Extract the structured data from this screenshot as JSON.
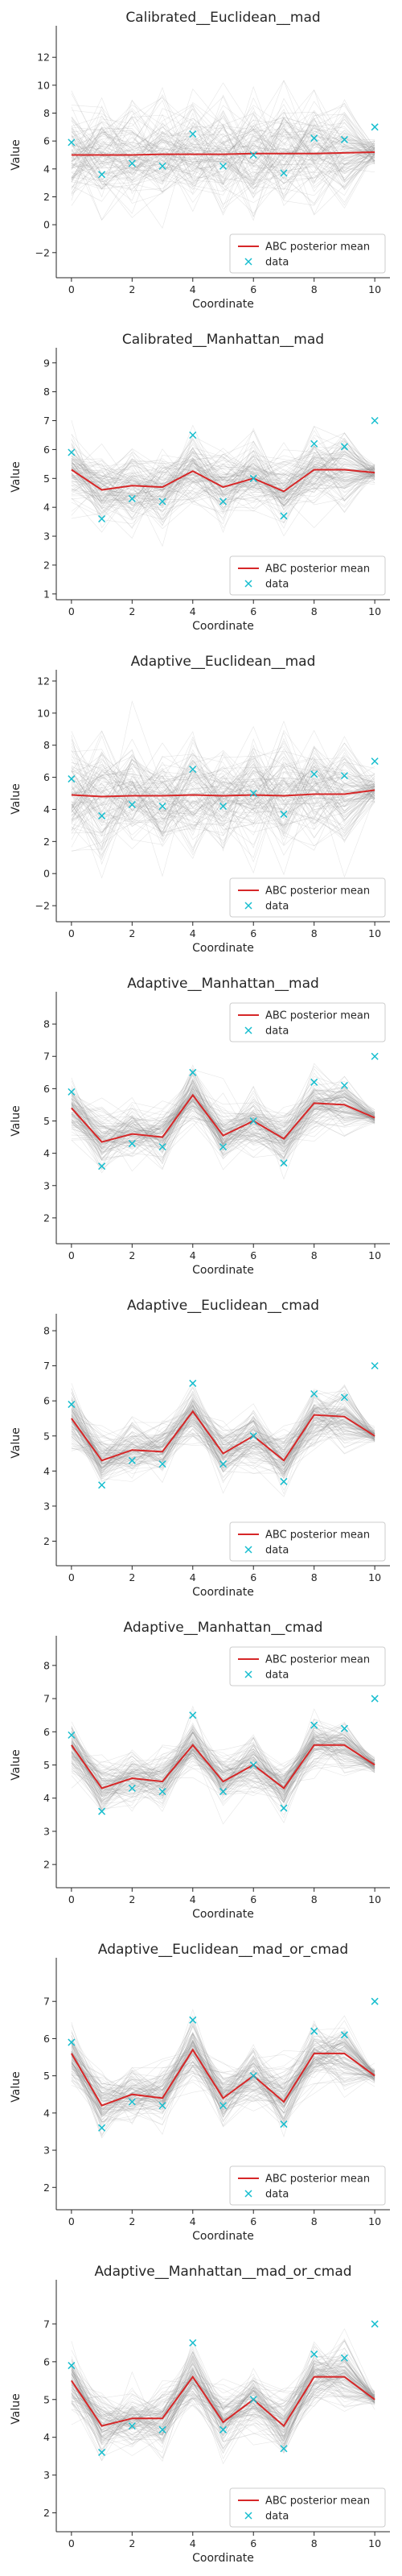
{
  "legend": {
    "mean_label": "ABC posterior mean",
    "data_label": "data"
  },
  "colors": {
    "mean": "#d62728",
    "data": "#17becf",
    "samples": "#8c8c8c",
    "axis": "#262626"
  },
  "chart_data": [
    {
      "type": "line",
      "title": "Calibrated__Euclidean__mad",
      "xlabel": "Coordinate",
      "ylabel": "Value",
      "xlim": [
        -0.5,
        10.5
      ],
      "ylim": [
        -3.8,
        13.8
      ],
      "x_ticks": [
        0,
        2,
        4,
        6,
        8,
        10
      ],
      "y_ticks": [
        -2,
        0,
        2,
        4,
        6,
        8,
        10,
        12
      ],
      "legend_position": "lower-right",
      "spread": 3.2,
      "posterior_mean": [
        5.0,
        5.0,
        5.0,
        5.05,
        5.05,
        5.05,
        5.1,
        5.1,
        5.1,
        5.15,
        5.2
      ],
      "data": [
        5.9,
        3.6,
        4.4,
        4.2,
        6.5,
        4.2,
        5.0,
        3.7,
        6.2,
        6.1,
        7.0
      ]
    },
    {
      "type": "line",
      "title": "Calibrated__Manhattan__mad",
      "xlabel": "Coordinate",
      "ylabel": "Value",
      "xlim": [
        -0.5,
        10.5
      ],
      "ylim": [
        0.8,
        9.3
      ],
      "x_ticks": [
        0,
        2,
        4,
        6,
        8,
        10
      ],
      "y_ticks": [
        1,
        2,
        3,
        4,
        5,
        6,
        7,
        8,
        9
      ],
      "legend_position": "lower-right",
      "spread": 1.1,
      "posterior_mean": [
        5.3,
        4.6,
        4.75,
        4.7,
        5.25,
        4.7,
        5.0,
        4.55,
        5.3,
        5.3,
        5.2
      ],
      "data": [
        5.9,
        3.6,
        4.3,
        4.2,
        6.5,
        4.2,
        5.0,
        3.7,
        6.2,
        6.1,
        7.0
      ]
    },
    {
      "type": "line",
      "title": "Adaptive__Euclidean__mad",
      "xlabel": "Coordinate",
      "ylabel": "Value",
      "xlim": [
        -0.5,
        10.5
      ],
      "ylim": [
        -3.0,
        12.3
      ],
      "x_ticks": [
        0,
        2,
        4,
        6,
        8,
        10
      ],
      "y_ticks": [
        -2,
        0,
        2,
        4,
        6,
        8,
        10,
        12
      ],
      "legend_position": "lower-right",
      "spread": 3.0,
      "posterior_mean": [
        4.9,
        4.8,
        4.85,
        4.85,
        4.9,
        4.85,
        4.9,
        4.85,
        4.95,
        4.95,
        5.2
      ],
      "data": [
        5.9,
        3.6,
        4.3,
        4.2,
        6.5,
        4.2,
        5.0,
        3.7,
        6.2,
        6.1,
        7.0
      ]
    },
    {
      "type": "line",
      "title": "Adaptive__Manhattan__mad",
      "xlabel": "Coordinate",
      "ylabel": "Value",
      "xlim": [
        -0.5,
        10.5
      ],
      "ylim": [
        1.2,
        8.8
      ],
      "x_ticks": [
        0,
        2,
        4,
        6,
        8,
        10
      ],
      "y_ticks": [
        2,
        3,
        4,
        5,
        6,
        7,
        8
      ],
      "legend_position": "upper-right",
      "spread": 0.75,
      "posterior_mean": [
        5.4,
        4.35,
        4.6,
        4.5,
        5.8,
        4.55,
        5.0,
        4.45,
        5.55,
        5.5,
        5.1
      ],
      "data": [
        5.9,
        3.6,
        4.3,
        4.2,
        6.5,
        4.2,
        5.0,
        3.7,
        6.2,
        6.1,
        7.0
      ]
    },
    {
      "type": "line",
      "title": "Adaptive__Euclidean__cmad",
      "xlabel": "Coordinate",
      "ylabel": "Value",
      "xlim": [
        -0.5,
        10.5
      ],
      "ylim": [
        1.3,
        8.3
      ],
      "x_ticks": [
        0,
        2,
        4,
        6,
        8,
        10
      ],
      "y_ticks": [
        2,
        3,
        4,
        5,
        6,
        7,
        8
      ],
      "legend_position": "lower-right",
      "spread": 0.7,
      "posterior_mean": [
        5.5,
        4.3,
        4.6,
        4.55,
        5.7,
        4.5,
        5.0,
        4.3,
        5.6,
        5.55,
        5.0
      ],
      "data": [
        5.9,
        3.6,
        4.3,
        4.2,
        6.5,
        4.2,
        5.0,
        3.7,
        6.2,
        6.1,
        7.0
      ]
    },
    {
      "type": "line",
      "title": "Adaptive__Manhattan__cmad",
      "xlabel": "Coordinate",
      "ylabel": "Value",
      "xlim": [
        -0.5,
        10.5
      ],
      "ylim": [
        1.3,
        8.7
      ],
      "x_ticks": [
        0,
        2,
        4,
        6,
        8,
        10
      ],
      "y_ticks": [
        2,
        3,
        4,
        5,
        6,
        7,
        8
      ],
      "legend_position": "upper-right",
      "spread": 0.7,
      "posterior_mean": [
        5.6,
        4.3,
        4.6,
        4.5,
        5.6,
        4.5,
        5.0,
        4.3,
        5.6,
        5.6,
        5.0
      ],
      "data": [
        5.9,
        3.6,
        4.3,
        4.2,
        6.5,
        4.2,
        5.0,
        3.7,
        6.2,
        6.1,
        7.0
      ]
    },
    {
      "type": "line",
      "title": "Adaptive__Euclidean__mad_or_cmad",
      "xlabel": "Coordinate",
      "ylabel": "Value",
      "xlim": [
        -0.5,
        10.5
      ],
      "ylim": [
        1.4,
        8.0
      ],
      "x_ticks": [
        0,
        2,
        4,
        6,
        8,
        10
      ],
      "y_ticks": [
        2,
        3,
        4,
        5,
        6,
        7
      ],
      "legend_position": "lower-right",
      "spread": 0.7,
      "posterior_mean": [
        5.6,
        4.2,
        4.5,
        4.4,
        5.7,
        4.4,
        5.0,
        4.3,
        5.6,
        5.6,
        5.0
      ],
      "data": [
        5.9,
        3.6,
        4.3,
        4.2,
        6.5,
        4.2,
        5.0,
        3.7,
        6.2,
        6.1,
        7.0
      ]
    },
    {
      "type": "line",
      "title": "Adaptive__Manhattan__mad_or_cmad",
      "xlabel": "Coordinate",
      "ylabel": "Value",
      "xlim": [
        -0.5,
        10.5
      ],
      "ylim": [
        1.5,
        8.0
      ],
      "x_ticks": [
        0,
        2,
        4,
        6,
        8,
        10
      ],
      "y_ticks": [
        2,
        3,
        4,
        5,
        6,
        7
      ],
      "legend_position": "lower-right",
      "spread": 0.7,
      "posterior_mean": [
        5.5,
        4.3,
        4.5,
        4.5,
        5.6,
        4.4,
        5.0,
        4.3,
        5.6,
        5.6,
        5.0
      ],
      "data": [
        5.9,
        3.6,
        4.3,
        4.2,
        6.5,
        4.2,
        5.0,
        3.7,
        6.2,
        6.1,
        7.0
      ]
    }
  ]
}
